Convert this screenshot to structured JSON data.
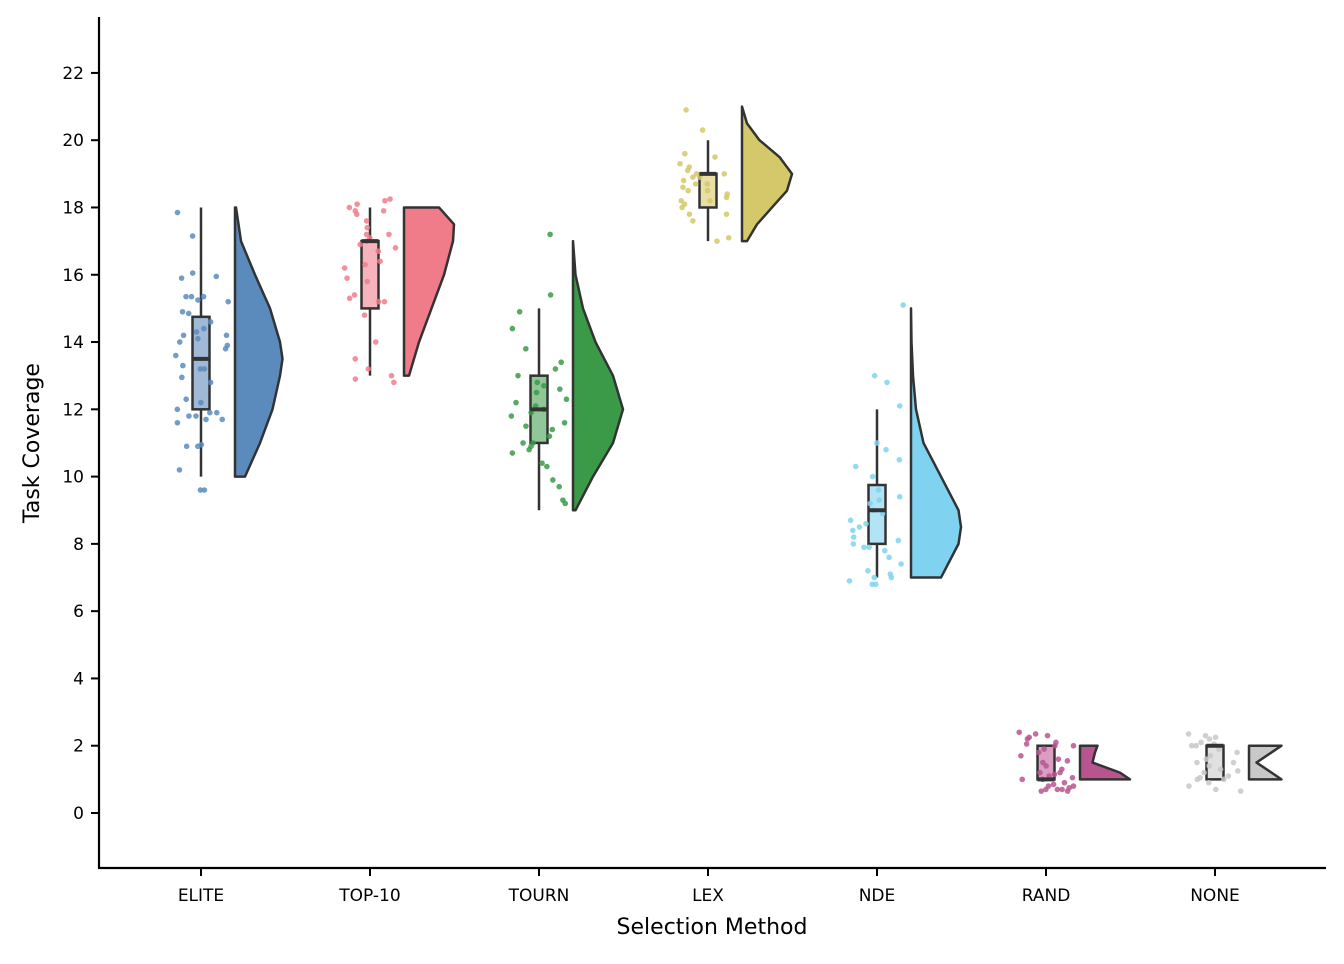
{
  "chart_data": {
    "type": "raincloud",
    "title": "",
    "xlabel": "Selection Method",
    "ylabel": "Task Coverage",
    "ylim": [
      -1.6,
      23.6
    ],
    "yticks": [
      0,
      2,
      4,
      6,
      8,
      10,
      12,
      14,
      16,
      18,
      20,
      22
    ],
    "grid": false,
    "legend": "none",
    "categories": [
      "ELITE",
      "TOP-10",
      "TOURN",
      "LEX",
      "NDE",
      "RAND",
      "NONE"
    ],
    "series": [
      {
        "name": "ELITE",
        "color": "#5b8bbd",
        "box_color": "#a0b9d6",
        "min": 10,
        "q1": 12,
        "median": 13.5,
        "q3": 14.75,
        "max": 18,
        "violin": {
          "range": [
            10,
            18
          ],
          "peak": 13.5,
          "points": [
            [
              10,
              0.2
            ],
            [
              11,
              0.5
            ],
            [
              12,
              0.75
            ],
            [
              13,
              0.9
            ],
            [
              13.5,
              0.95
            ],
            [
              14,
              0.9
            ],
            [
              15,
              0.7
            ],
            [
              16,
              0.4
            ],
            [
              17,
              0.12
            ],
            [
              18,
              0.02
            ]
          ]
        },
        "points": [
          9.6,
          9.6,
          10.2,
          10.9,
          10.9,
          10.95,
          11.6,
          11.7,
          11.7,
          11.8,
          11.8,
          11.9,
          11.9,
          12.0,
          12.2,
          12.3,
          12.8,
          12.95,
          13.2,
          13.2,
          13.3,
          13.6,
          13.8,
          13.9,
          14.0,
          14.1,
          14.2,
          14.2,
          14.3,
          14.4,
          14.6,
          14.85,
          14.9,
          15.2,
          15.25,
          15.35,
          15.35,
          15.35,
          15.9,
          15.95,
          16.05,
          17.15,
          17.85
        ]
      },
      {
        "name": "TOP-10",
        "color": "#f07c89",
        "box_color": "#f7b3bb",
        "min": 13,
        "q1": 15,
        "median": 17,
        "q3": 17,
        "max": 18,
        "violin": {
          "range": [
            13,
            18
          ],
          "peak": 17.5,
          "points": [
            [
              13,
              0.1
            ],
            [
              14,
              0.3
            ],
            [
              15,
              0.55
            ],
            [
              16,
              0.8
            ],
            [
              17,
              0.98
            ],
            [
              17.5,
              1.0
            ],
            [
              18,
              0.7
            ]
          ]
        },
        "points": [
          12.8,
          12.9,
          13.0,
          13.2,
          13.5,
          14.0,
          14.8,
          15.2,
          15.2,
          15.3,
          15.4,
          15.8,
          15.9,
          16.2,
          16.3,
          16.4,
          16.7,
          16.8,
          16.9,
          17.0,
          17.1,
          17.2,
          17.2,
          17.4,
          17.6,
          17.8,
          17.9,
          17.9,
          18.0,
          18.1,
          18.2,
          18.25
        ]
      },
      {
        "name": "TOURN",
        "color": "#3a9a48",
        "box_color": "#8fc797",
        "min": 9,
        "q1": 11,
        "median": 12,
        "q3": 13,
        "max": 15,
        "violin": {
          "range": [
            9,
            17
          ],
          "peak": 12,
          "points": [
            [
              9,
              0.05
            ],
            [
              10,
              0.4
            ],
            [
              11,
              0.8
            ],
            [
              12,
              1.0
            ],
            [
              13,
              0.8
            ],
            [
              14,
              0.45
            ],
            [
              15,
              0.2
            ],
            [
              16,
              0.05
            ],
            [
              17,
              0.0
            ]
          ]
        },
        "points": [
          9.2,
          9.3,
          9.7,
          9.9,
          10.3,
          10.4,
          10.7,
          10.8,
          10.9,
          11.0,
          11.0,
          11.2,
          11.4,
          11.5,
          11.6,
          11.8,
          11.9,
          12.0,
          12.1,
          12.2,
          12.3,
          12.5,
          12.6,
          12.7,
          12.8,
          13.0,
          13.2,
          13.4,
          13.8,
          14.4,
          14.9,
          15.4,
          17.2
        ]
      },
      {
        "name": "LEX",
        "color": "#d5c86a",
        "box_color": "#e7dfa6",
        "min": 17,
        "q1": 18,
        "median": 19,
        "q3": 19,
        "max": 20,
        "violin": {
          "range": [
            17,
            21
          ],
          "peak": 19,
          "points": [
            [
              17,
              0.1
            ],
            [
              17.5,
              0.3
            ],
            [
              18,
              0.6
            ],
            [
              18.5,
              0.9
            ],
            [
              19,
              1.0
            ],
            [
              19.5,
              0.75
            ],
            [
              20,
              0.35
            ],
            [
              20.5,
              0.1
            ],
            [
              21,
              0.0
            ]
          ]
        },
        "points": [
          17.0,
          17.1,
          17.6,
          17.8,
          17.8,
          18.0,
          18.1,
          18.2,
          18.2,
          18.3,
          18.4,
          18.5,
          18.5,
          18.6,
          18.7,
          18.7,
          18.8,
          18.9,
          18.9,
          19.0,
          19.0,
          19.1,
          19.2,
          19.3,
          19.5,
          19.6,
          20.3,
          20.9
        ]
      },
      {
        "name": "NDE",
        "color": "#7fd3f0",
        "box_color": "#b3e4f6",
        "min": 7,
        "q1": 8,
        "median": 9,
        "q3": 9.75,
        "max": 12,
        "violin": {
          "range": [
            7,
            15
          ],
          "peak": 8.5,
          "points": [
            [
              7,
              0.6
            ],
            [
              8,
              0.95
            ],
            [
              8.5,
              1.0
            ],
            [
              9,
              0.95
            ],
            [
              10,
              0.6
            ],
            [
              11,
              0.25
            ],
            [
              12,
              0.1
            ],
            [
              13,
              0.04
            ],
            [
              14,
              0.01
            ],
            [
              15,
              0.0
            ]
          ]
        },
        "points": [
          6.8,
          6.8,
          6.9,
          7.0,
          7.0,
          7.1,
          7.2,
          7.4,
          7.6,
          7.8,
          7.9,
          7.9,
          8.0,
          8.1,
          8.2,
          8.4,
          8.5,
          8.6,
          8.7,
          8.9,
          9.0,
          9.2,
          9.3,
          9.4,
          9.6,
          10.0,
          10.3,
          10.5,
          10.8,
          11.0,
          12.1,
          12.8,
          13.0,
          15.1
        ]
      },
      {
        "name": "RAND",
        "color": "#b85591",
        "box_color": "#d99ec2",
        "min": 1,
        "q1": 1,
        "median": 1,
        "q3": 2,
        "max": 2,
        "violin": {
          "range": [
            1,
            2
          ],
          "peak": 1,
          "points": [
            [
              1,
              1.0
            ],
            [
              1.2,
              0.8
            ],
            [
              1.5,
              0.25
            ],
            [
              1.8,
              0.3
            ],
            [
              2,
              0.35
            ]
          ]
        },
        "points": [
          0.65,
          0.65,
          0.7,
          0.7,
          0.7,
          0.75,
          0.8,
          0.8,
          0.85,
          0.9,
          1.0,
          1.0,
          1.05,
          1.1,
          1.15,
          1.2,
          1.2,
          1.3,
          1.4,
          1.5,
          1.55,
          1.6,
          1.7,
          1.8,
          1.9,
          2.0,
          2.0,
          2.05,
          2.1,
          2.2,
          2.25,
          2.3,
          2.35,
          2.4
        ]
      },
      {
        "name": "NONE",
        "color": "#c8c8c8",
        "box_color": "#e1e1e1",
        "min": 1,
        "q1": 1,
        "median": 2,
        "q3": 2,
        "max": 2,
        "violin": {
          "range": [
            1,
            2
          ],
          "peak": 1,
          "points": [
            [
              1,
              0.65
            ],
            [
              1.2,
              0.45
            ],
            [
              1.5,
              0.15
            ],
            [
              1.8,
              0.45
            ],
            [
              2,
              0.65
            ]
          ]
        },
        "points": [
          0.65,
          0.7,
          0.8,
          0.9,
          1.0,
          1.0,
          1.05,
          1.1,
          1.2,
          1.25,
          1.3,
          1.4,
          1.5,
          1.5,
          1.6,
          1.7,
          1.8,
          1.9,
          2.0,
          2.0,
          2.05,
          2.1,
          2.2,
          2.25,
          2.3,
          2.35
        ]
      }
    ]
  }
}
